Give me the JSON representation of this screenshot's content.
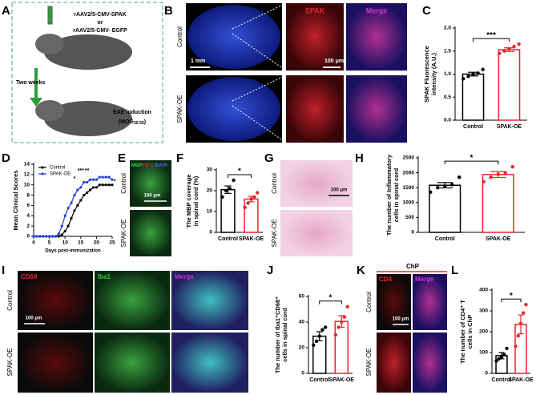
{
  "panels": {
    "A": {
      "letter": "A",
      "vector_spak": "rAAV2/5-CMV-SPAK",
      "or": "or",
      "vector_egfp": "rAAV2/5-CMV- EGFP",
      "interval": "Two weeks",
      "induction": "EAE induction",
      "mog": "(MOG",
      "mog_sub": "35-55",
      "mog_close": ")"
    },
    "B": {
      "letter": "B",
      "row_control": "Control",
      "row_oe": "SPAK-OE",
      "col_spak": "SPAK",
      "col_merge": "Merge",
      "scale_large": "1 mm",
      "scale_small": "100 μm"
    },
    "E": {
      "letter": "E",
      "stain_mbp": "MBP",
      "stain_nfl": "/NF-L",
      "stain_dapi": "/DAPI",
      "row_control": "Control",
      "row_oe": "SPAK-OE",
      "scale": "100 μm"
    },
    "G": {
      "letter": "G",
      "row_control": "Control",
      "row_oe": "SPAK-OE",
      "scale": "100 μm"
    },
    "I": {
      "letter": "I",
      "col_cd68": "CD68",
      "col_iba1": "Iba1",
      "col_merge": "Merge",
      "row_control": "Control",
      "row_oe": "SPAK-OE",
      "scale": "100 μm"
    },
    "K": {
      "letter": "K",
      "region": "ChP",
      "col_cd4": "CD4",
      "col_merge": "Merge",
      "row_control": "Control",
      "row_oe": "SPAK-OE",
      "scale": "100 μm"
    }
  },
  "chart_data": [
    {
      "type": "bar",
      "panel": "C",
      "ylabel": [
        "SPAK Fluorescence",
        "intensity (A.U.)"
      ],
      "categories": [
        "Control",
        "SPAK-OE"
      ],
      "values": [
        1.0,
        1.53
      ],
      "errors": [
        0.04,
        0.04
      ],
      "colors": [
        "#000000",
        "#e8262b"
      ],
      "points": [
        [
          0.9,
          0.95,
          1.0,
          1.02,
          1.1
        ],
        [
          1.45,
          1.5,
          1.55,
          1.6,
          1.65
        ]
      ],
      "significance": "***",
      "ylim": [
        0,
        2
      ],
      "yticks": [
        {
          "value": 0,
          "label": "0.0"
        },
        {
          "value": 0.5,
          "label": "0.5"
        },
        {
          "value": 1,
          "label": "1.0"
        },
        {
          "value": 1.5,
          "label": "1.5"
        },
        {
          "value": 2,
          "label": "2.0"
        }
      ]
    },
    {
      "type": "line",
      "panel": "D",
      "ylabel": "Mean Clinical Scores",
      "xlabel": "Days post-immunization",
      "x": [
        0,
        1,
        2,
        3,
        4,
        5,
        6,
        7,
        8,
        9,
        10,
        11,
        12,
        13,
        14,
        15,
        16,
        17,
        18,
        19,
        20,
        21,
        22,
        23,
        24,
        25
      ],
      "series": [
        {
          "name": "Control",
          "color": "#000000",
          "values": [
            0,
            0,
            0,
            0,
            0,
            0,
            0,
            0,
            0,
            0.3,
            1,
            2,
            3.5,
            5,
            6,
            7,
            8,
            8.5,
            9,
            9.5,
            9.5,
            10,
            10,
            10,
            10,
            10
          ]
        },
        {
          "name": "SPAK-OE",
          "color": "#1f3fd6",
          "values": [
            0,
            0,
            0,
            0,
            0,
            0,
            0,
            0,
            0.5,
            2,
            4,
            5.5,
            6.5,
            8,
            9,
            9.5,
            10.5,
            10.5,
            11,
            11,
            11,
            11.5,
            11.5,
            11.5,
            11.5,
            11
          ]
        }
      ],
      "xlim": [
        0,
        25
      ],
      "xticks": [
        0,
        5,
        10,
        15,
        20,
        25
      ],
      "ylim": [
        0,
        14
      ],
      "yticks": [
        0,
        2,
        4,
        6,
        8,
        10,
        12,
        14
      ],
      "annotations": [
        "*",
        "***",
        "**",
        "*"
      ],
      "legend": "upper left"
    },
    {
      "type": "bar",
      "panel": "F",
      "ylabel": [
        "The MBP coverage",
        "in spinal cord (%)"
      ],
      "categories": [
        "Control",
        "SPAK-OE"
      ],
      "values": [
        20.5,
        16
      ],
      "errors": [
        1.8,
        1.3
      ],
      "colors": [
        "#000000",
        "#e8262b"
      ],
      "points": [
        [
          17,
          20,
          21,
          25
        ],
        [
          12,
          14,
          16,
          17,
          19
        ]
      ],
      "significance": "*",
      "ylim": [
        0,
        30
      ],
      "yticks": [
        0,
        10,
        20,
        30
      ]
    },
    {
      "type": "bar",
      "panel": "H",
      "ylabel": [
        "The number of Inflammatory",
        "cells in spinal cord"
      ],
      "categories": [
        "Control",
        "SPAK-OE"
      ],
      "values": [
        1580,
        1940
      ],
      "errors": [
        90,
        100
      ],
      "colors": [
        "#000000",
        "#e8262b"
      ],
      "points": [
        [
          1350,
          1500,
          1550,
          1600,
          1850
        ],
        [
          1700,
          1850,
          1950,
          2000,
          2200
        ]
      ],
      "significance": "*",
      "ylim": [
        0,
        2500
      ],
      "yticks": [
        0,
        500,
        1000,
        1500,
        2000,
        2500
      ]
    },
    {
      "type": "bar",
      "panel": "J",
      "ylabel": [
        "The number of Iba1⁺CD68⁺",
        "cells in spinal cord"
      ],
      "categories": [
        "Control",
        "SPAK-OE"
      ],
      "values": [
        29,
        40.5
      ],
      "errors": [
        3.5,
        4.5
      ],
      "colors": [
        "#000000",
        "#e8262b"
      ],
      "points": [
        [
          22,
          25,
          29,
          34,
          36
        ],
        [
          30,
          36,
          40,
          44,
          52
        ]
      ],
      "significance": "*",
      "ylim": [
        0,
        60
      ],
      "yticks": [
        0,
        20,
        40,
        60
      ]
    },
    {
      "type": "bar",
      "panel": "L",
      "ylabel": [
        "The number of CD4⁺ T",
        "cells in ChP"
      ],
      "categories": [
        "Control",
        "SPAK-OE"
      ],
      "values": [
        85,
        235
      ],
      "errors": [
        15,
        45
      ],
      "colors": [
        "#000000",
        "#e8262b"
      ],
      "points": [
        [
          60,
          70,
          80,
          90,
          120
        ],
        [
          130,
          180,
          240,
          290,
          330
        ]
      ],
      "significance": "*",
      "ylim": [
        0,
        400
      ],
      "yticks": [
        0,
        100,
        200,
        300,
        400
      ]
    }
  ]
}
